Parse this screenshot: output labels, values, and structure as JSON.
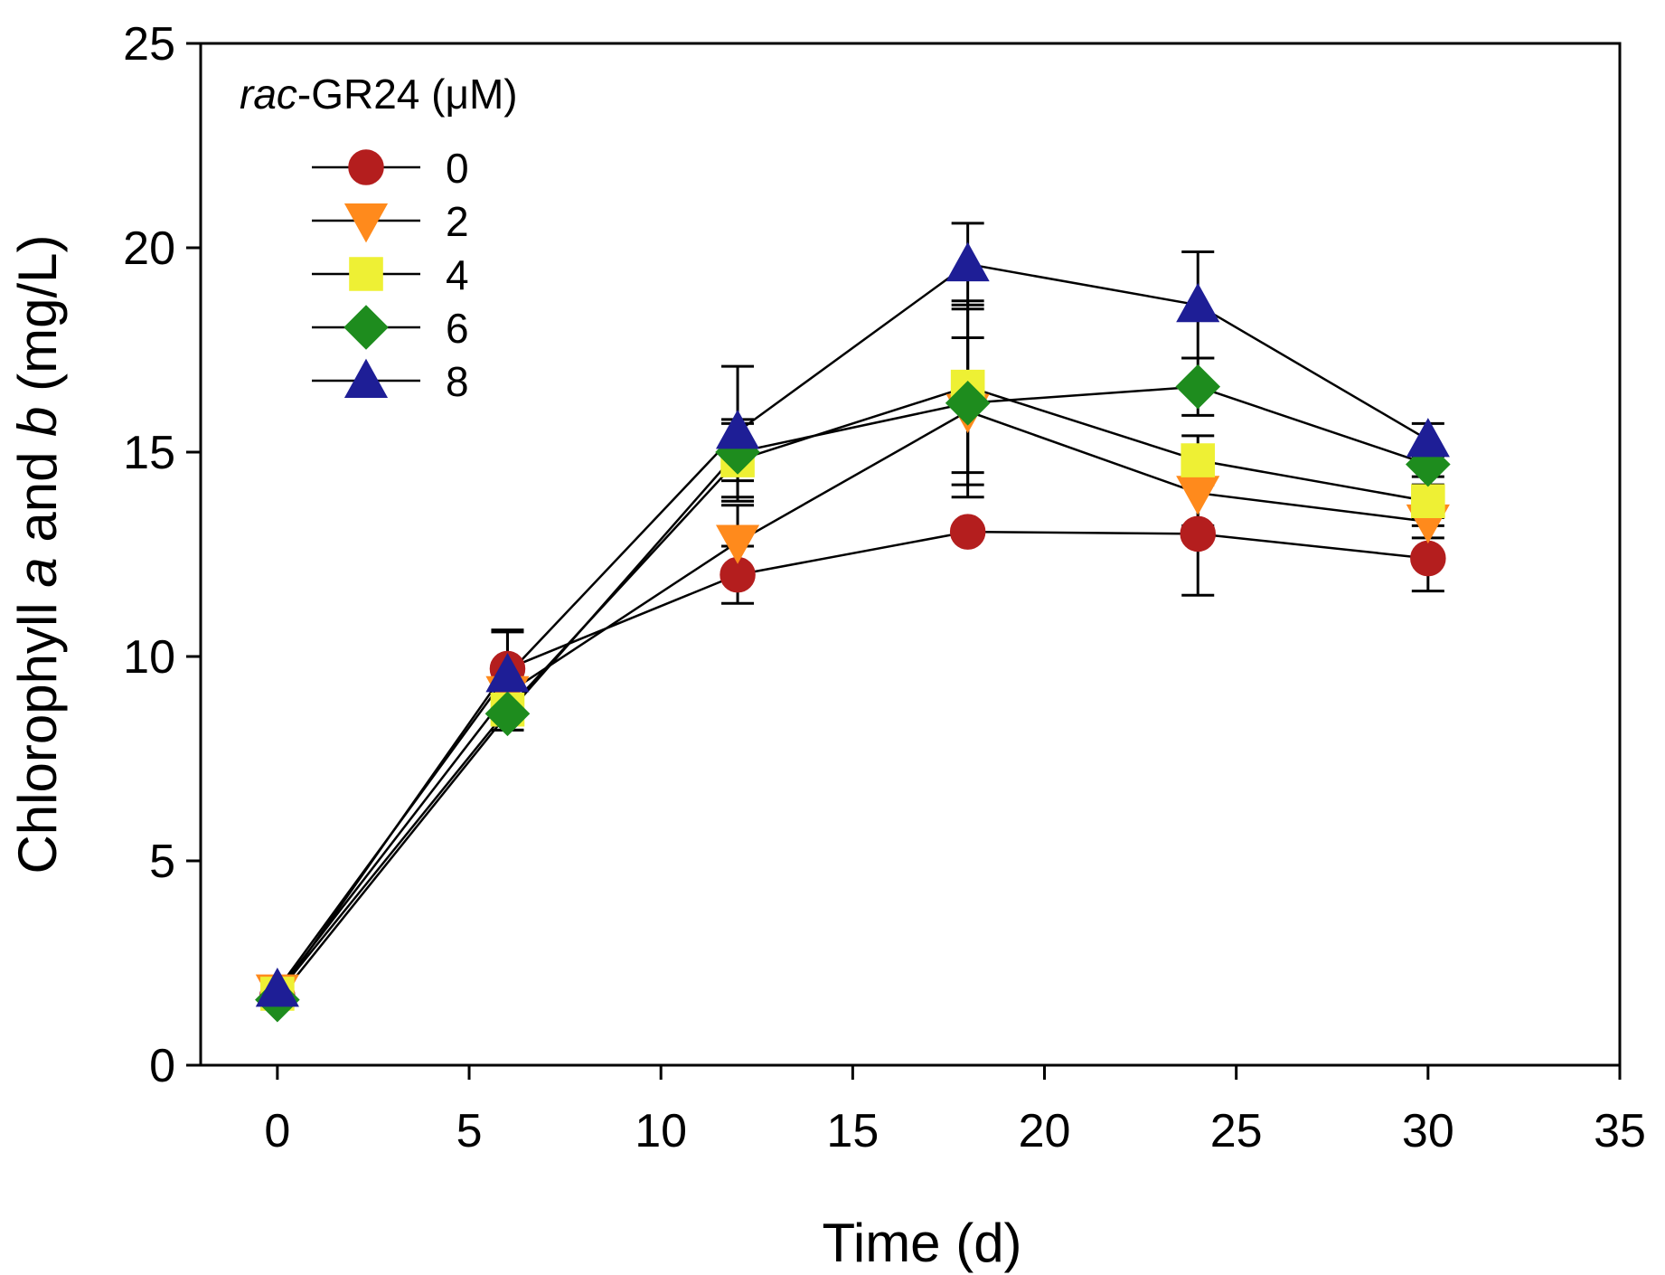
{
  "chart_data": {
    "type": "line",
    "title": "",
    "xlabel": "Time (d)",
    "ylabel_parts": [
      {
        "text": "Chlorophyll ",
        "italic": false
      },
      {
        "text": "a",
        "italic": true
      },
      {
        "text": " and ",
        "italic": false
      },
      {
        "text": "b",
        "italic": true
      },
      {
        "text": " (mg/L)",
        "italic": false
      }
    ],
    "xlim": [
      -2,
      35
    ],
    "ylim": [
      0,
      25
    ],
    "xticks": [
      0,
      5,
      10,
      15,
      20,
      25,
      30,
      35
    ],
    "yticks": [
      0,
      5,
      10,
      15,
      20,
      25
    ],
    "x": [
      0,
      6,
      12,
      18,
      24,
      30
    ],
    "legend": {
      "title_italic": "rac",
      "title_rest": "-GR24 (μM)",
      "position": "top-left"
    },
    "series": [
      {
        "name": "0",
        "marker": "circle",
        "color": "#b41e1e",
        "values": [
          1.7,
          9.7,
          12.0,
          13.05,
          13.0,
          12.4
        ],
        "errors": [
          0.1,
          0.9,
          0.7,
          0.0,
          1.5,
          0.8
        ]
      },
      {
        "name": "2",
        "marker": "triangle-down",
        "color": "#ff8a1c",
        "values": [
          1.8,
          9.1,
          12.8,
          16.0,
          14.0,
          13.3
        ],
        "errors": [
          0.1,
          0.4,
          0.9,
          1.8,
          0.8,
          0.4
        ]
      },
      {
        "name": "4",
        "marker": "square",
        "color": "#eef034",
        "values": [
          1.75,
          8.7,
          14.8,
          16.6,
          14.8,
          13.8
        ],
        "errors": [
          0.1,
          0.5,
          1.0,
          2.1,
          0.6,
          0.4
        ]
      },
      {
        "name": "6",
        "marker": "diamond",
        "color": "#1e8c1e",
        "values": [
          1.6,
          8.6,
          15.0,
          16.2,
          16.6,
          14.7
        ],
        "errors": [
          0.1,
          0.4,
          0.7,
          2.3,
          0.7,
          0.3
        ]
      },
      {
        "name": "8",
        "marker": "triangle-up",
        "color": "#1e1e96",
        "values": [
          1.85,
          9.55,
          15.5,
          19.6,
          18.6,
          15.3
        ],
        "errors": [
          0.1,
          1.1,
          1.6,
          1.0,
          1.3,
          0.4
        ]
      }
    ]
  }
}
